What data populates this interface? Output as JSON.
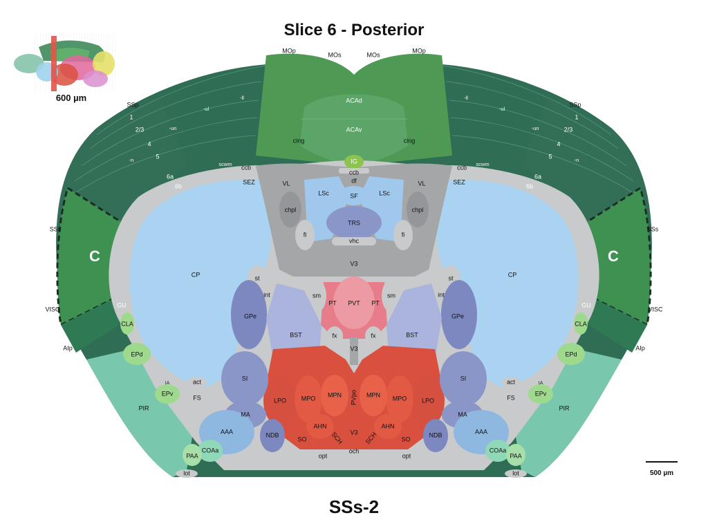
{
  "header": {
    "title": "Slice 6 - Posterior"
  },
  "footer": {
    "label": "SSs-2"
  },
  "thumbnail": {
    "label": "600 µm"
  },
  "scale": {
    "label": "500 µm"
  },
  "colors": {
    "cortex_dark": "#2f6d55",
    "cortex_mid": "#3b7f5e",
    "motor": "#4e9a55",
    "highlight": "#3f9152",
    "acc": "#5aa567",
    "piriform": "#79c7ad",
    "white_matter": "#c8cacb",
    "striatum": "#a9d3f0",
    "pallidum": "#8b96c8",
    "hypothalamus": "#d9503f",
    "thalamus": "#e77d8a",
    "ventricle": "#a4a6a8",
    "septum": "#9fc8ec",
    "ig": "#8dc44e"
  },
  "regions": {
    "MOp": "MOp",
    "MOs": "MOs",
    "ACAd": "ACAd",
    "ACAv": "ACAv",
    "IG": "IG",
    "SSp": "SSp",
    "SSs": "SSs",
    "VISC": "VISC",
    "GU": "GU",
    "AIp": "AIp",
    "layer1": "1",
    "layer23": "2/3",
    "layer4": "4",
    "layer5": "5",
    "layer6a": "6a",
    "layer6b": "6b",
    "ul": "-ul",
    "un": "-un",
    "ll": "-ll",
    "tr": "-tr",
    "n": "-n",
    "cing": "cing",
    "ccb": "ccb",
    "scwm": "scwm",
    "SEZ": "SEZ",
    "df": "df",
    "VL": "VL",
    "LSc": "LSc",
    "SF": "SF",
    "chpl": "chpl",
    "fi": "fi",
    "TRS": "TRS",
    "vhc": "vhc",
    "V3": "V3",
    "CP": "CP",
    "C": "C",
    "st": "st",
    "int": "int",
    "GPe": "GPe",
    "BST": "BST",
    "sm": "sm",
    "PT": "PT",
    "PVT": "PVT",
    "fx": "fx",
    "CLA": "CLA",
    "EPd": "EPd",
    "EPv": "EPv",
    "IA": "IA",
    "PIR": "PIR",
    "SI": "SI",
    "act": "act",
    "FS": "FS",
    "MA": "MA",
    "AAA": "AAA",
    "NDB": "NDB",
    "LPO": "LPO",
    "MPO": "MPO",
    "MPN": "MPN",
    "PVpo": "PVpo",
    "AHN": "AHN",
    "SO": "SO",
    "SCH": "SCH",
    "och": "och",
    "opt": "opt",
    "PAA": "PAA",
    "COAa": "COAa",
    "lot": "lot"
  }
}
